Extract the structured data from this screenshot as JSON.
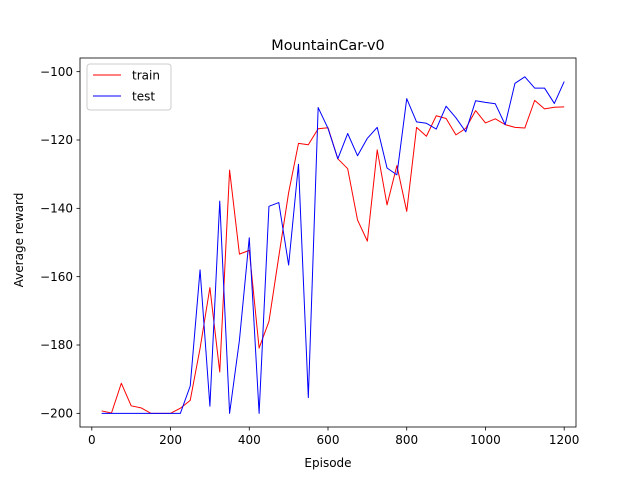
{
  "chart_data": {
    "type": "line",
    "title": "MountainCar-v0",
    "xlabel": "Episode",
    "ylabel": "Average reward",
    "xlim": [
      -30,
      1230
    ],
    "ylim": [
      -204,
      -96
    ],
    "xticks": [
      0,
      200,
      400,
      600,
      800,
      1000,
      1200
    ],
    "yticks": [
      -200,
      -180,
      -160,
      -140,
      -120,
      -100
    ],
    "x_tick_labels": [
      "0",
      "200",
      "400",
      "600",
      "800",
      "1000",
      "1200"
    ],
    "y_tick_labels": [
      "−200",
      "−180",
      "−160",
      "−140",
      "−120",
      "−100"
    ],
    "grid": false,
    "legend_position": "top-left",
    "series": [
      {
        "name": "train",
        "color": "#ff0000",
        "x": [
          25,
          50,
          75,
          100,
          125,
          150,
          175,
          200,
          225,
          250,
          275,
          300,
          325,
          350,
          375,
          400,
          425,
          450,
          475,
          500,
          525,
          550,
          575,
          600,
          625,
          650,
          675,
          700,
          725,
          750,
          775,
          800,
          825,
          850,
          875,
          900,
          925,
          950,
          975,
          1000,
          1025,
          1050,
          1075,
          1100,
          1125,
          1150,
          1175,
          1200
        ],
        "y": [
          -199.3,
          -199.9,
          -191.2,
          -197.8,
          -198.4,
          -200,
          -200,
          -200,
          -198.5,
          -196.2,
          -181,
          -163.2,
          -187.9,
          -128.8,
          -153.4,
          -152.3,
          -180.9,
          -173.1,
          -154.1,
          -135.4,
          -121,
          -121.4,
          -116.7,
          -116.4,
          -125.5,
          -128.4,
          -143.4,
          -149.6,
          -122.9,
          -139,
          -127.5,
          -140.9,
          -116.3,
          -118.9,
          -112.9,
          -113.7,
          -118.5,
          -116.6,
          -111.4,
          -115,
          -113.8,
          -115.5,
          -116.3,
          -116.5,
          -108.4,
          -110.9,
          -110.4,
          -110.3
        ]
      },
      {
        "name": "test",
        "color": "#0000ff",
        "x": [
          25,
          50,
          75,
          100,
          125,
          150,
          175,
          200,
          225,
          250,
          275,
          300,
          325,
          350,
          375,
          400,
          425,
          450,
          475,
          500,
          525,
          550,
          575,
          600,
          625,
          650,
          675,
          700,
          725,
          750,
          775,
          800,
          825,
          850,
          875,
          900,
          925,
          950,
          975,
          1000,
          1025,
          1050,
          1075,
          1100,
          1125,
          1150,
          1175,
          1200
        ],
        "y": [
          -200,
          -200,
          -200,
          -200,
          -200,
          -200,
          -200,
          -200,
          -200,
          -192,
          -158,
          -197.9,
          -137.9,
          -200,
          -178.6,
          -148.6,
          -200,
          -139.4,
          -138.3,
          -156.6,
          -127.1,
          -195.4,
          -110.5,
          -116.6,
          -125.5,
          -118.1,
          -124.6,
          -119.5,
          -116.3,
          -128.2,
          -130.2,
          -107.9,
          -114.7,
          -115.1,
          -116.8,
          -110.1,
          -113.5,
          -117.6,
          -108.5,
          -109,
          -109.4,
          -115.5,
          -103.4,
          -101.5,
          -104.8,
          -104.8,
          -109.3,
          -102.9
        ]
      }
    ]
  }
}
